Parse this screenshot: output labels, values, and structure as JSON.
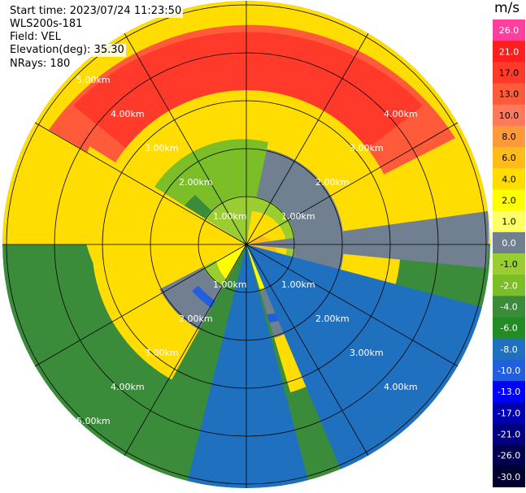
{
  "header": {
    "start_time": "Start time: 2023/07/24 11:23:50",
    "instrument": "WLS200s-181",
    "field": "Field: VEL",
    "elevation": "Elevation(deg): 35.30",
    "nrays": "NRays: 180"
  },
  "rings": {
    "labels": [
      "1.00km",
      "2.00km",
      "3.00km",
      "4.00km",
      "5.00km"
    ]
  },
  "colorbar": {
    "unit": "m/s",
    "ticks": [
      "26.0",
      "21.0",
      "17.0",
      "13.0",
      "10.0",
      "8.0",
      "6.0",
      "4.0",
      "2.0",
      "1.0",
      "0.0",
      "-1.0",
      "-2.0",
      "-4.0",
      "-6.0",
      "-8.0",
      "-10.0",
      "-13.0",
      "-17.0",
      "-21.0",
      "-26.0",
      "-30.0"
    ],
    "colors": [
      "#ff3ea0",
      "#ff1e1e",
      "#ff3a2a",
      "#ff5a3a",
      "#ff7a5a",
      "#ff9a3a",
      "#ffbb1a",
      "#ffdd00",
      "#ffff00",
      "#ffff66",
      "#708090",
      "#9acd32",
      "#7cbe28",
      "#3a8c3a",
      "#228b22",
      "#2070c0",
      "#1f5fe0",
      "#0000ff",
      "#0000b0",
      "#000080",
      "#000050",
      "#000030"
    ]
  }
}
